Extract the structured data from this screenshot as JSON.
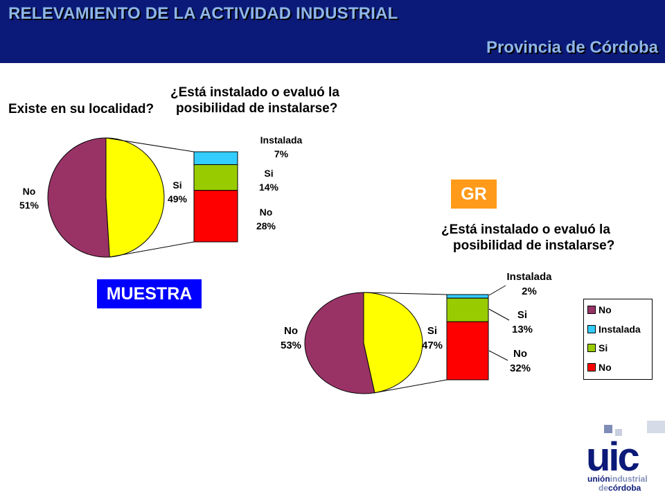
{
  "header": {
    "title": "RELEVAMIENTO DE LA ACTIVIDAD INDUSTRIAL",
    "subtitle": "Provincia de Córdoba"
  },
  "badges": {
    "muestra": "MUESTRA",
    "gr": "GR"
  },
  "colors": {
    "header_bg": "#0b1a78",
    "header_text": "#8fb6e8",
    "pie_no": "#993366",
    "pie_si": "#ffff00",
    "bar_instalada": "#33ccff",
    "bar_si": "#99cc00",
    "bar_no": "#ff0000",
    "muestra_badge": "#0000ff",
    "gr_badge": "#ff9a1a"
  },
  "chart_data": [
    {
      "type": "pie",
      "id": "muestra",
      "question_pie": "Existe en su localidad?",
      "question_bar": "¿Está instalado o evaluó la posibilidad de instalarse?",
      "pie": [
        {
          "label": "No",
          "value": 51,
          "display": "51%"
        },
        {
          "label": "Si",
          "value": 49,
          "display": "49%"
        }
      ],
      "bar_of_pie": [
        {
          "label": "Instalada",
          "value": 7,
          "display": "7%"
        },
        {
          "label": "Si",
          "value": 14,
          "display": "14%"
        },
        {
          "label": "No",
          "value": 28,
          "display": "28%"
        }
      ]
    },
    {
      "type": "pie",
      "id": "gr",
      "question_bar": "¿Está instalado o evaluó la posibilidad de instalarse?",
      "pie": [
        {
          "label": "No",
          "value": 53,
          "display": "53%"
        },
        {
          "label": "Si",
          "value": 47,
          "display": "47%"
        }
      ],
      "bar_of_pie": [
        {
          "label": "Instalada",
          "value": 2,
          "display": "2%"
        },
        {
          "label": "Si",
          "value": 13,
          "display": "13%"
        },
        {
          "label": "No",
          "value": 32,
          "display": "32%"
        }
      ],
      "legend": [
        "No",
        "Instalada",
        "Si",
        "No"
      ]
    }
  ],
  "text": {
    "c1_q_pie": "Existe en su localidad?",
    "c1_q_bar_l1": "¿Está instalado o evaluó la",
    "c1_q_bar_l2": "posibilidad de instalarse?",
    "c2_q_bar_l1": "¿Está instalado o evaluó la",
    "c2_q_bar_l2": "posibilidad de instalarse?"
  },
  "logo": {
    "mark": "uic",
    "line1_a": "unión",
    "line1_b": "industrial",
    "line2_a": "de",
    "line2_b": "córdoba"
  }
}
